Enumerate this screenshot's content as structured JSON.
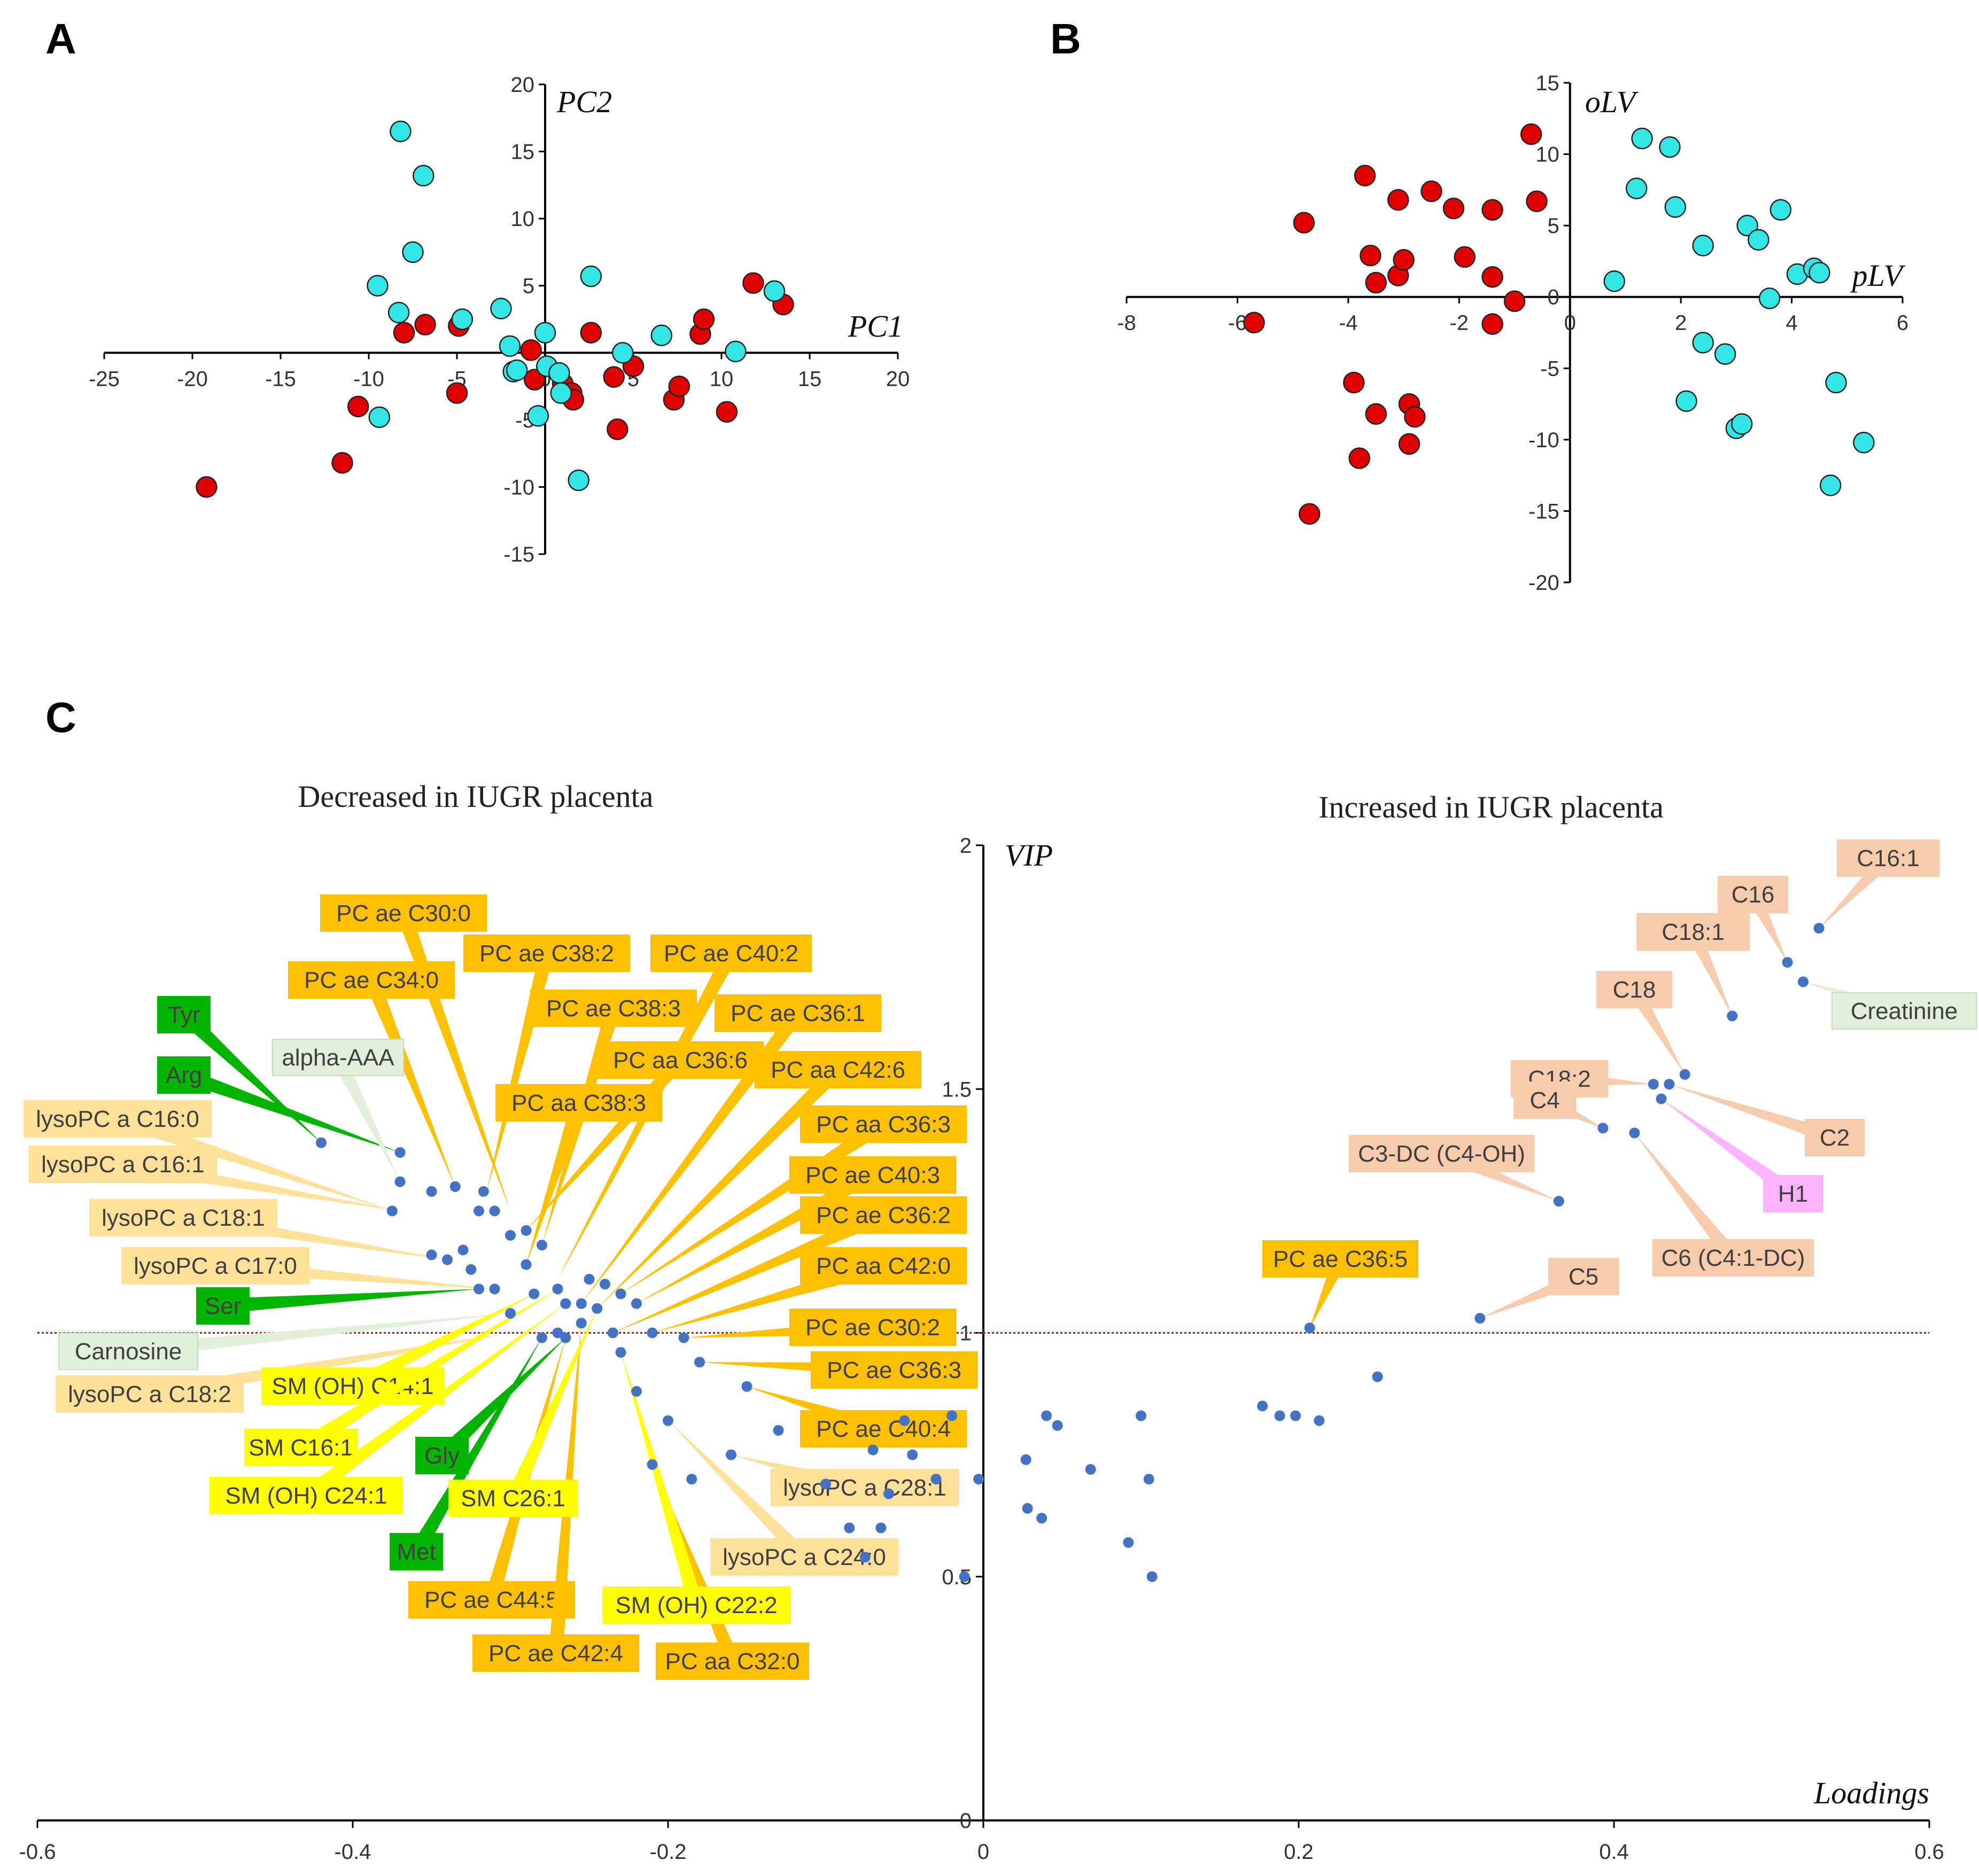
{
  "colors": {
    "red": "#e00000",
    "cyan": "#33e6e6",
    "blue_dot": "#4472c4",
    "threshold": "#e00000",
    "cat": {
      "orange": {
        "fill": "#ffc000",
        "edge": "#ffc000",
        "text": "#404040"
      },
      "lightorange": {
        "fill": "#ffe199",
        "edge": "#ffe199",
        "text": "#404040"
      },
      "yellow": {
        "fill": "#ffff00",
        "edge": "#ffff00",
        "text": "#404040"
      },
      "green": {
        "fill": "#00b400",
        "edge": "#00b400",
        "text": "#404040"
      },
      "palegreen": {
        "fill": "#e2efda",
        "edge": "#c8dcc0",
        "text": "#404040"
      },
      "salmon": {
        "fill": "#f8cbad",
        "edge": "#f8cbad",
        "text": "#404040"
      },
      "pink": {
        "fill": "#ffb3ff",
        "edge": "#ffb3ff",
        "text": "#404040"
      }
    }
  },
  "chart_data": [
    {
      "panel": "A",
      "type": "scatter",
      "xlabel": "PC1",
      "ylabel": "PC2",
      "xlim": [
        -25,
        20
      ],
      "ylim": [
        -15,
        20
      ],
      "xticks": [
        -25,
        -20,
        -15,
        -10,
        -5,
        0,
        5,
        10,
        15,
        20
      ],
      "yticks": [
        -15,
        -10,
        -5,
        0,
        5,
        10,
        15,
        20
      ],
      "series": [
        {
          "name": "red",
          "points": [
            [
              -19.2,
              -10.0
            ],
            [
              -11.5,
              -8.2
            ],
            [
              -10.6,
              -4.0
            ],
            [
              -8.0,
              1.5
            ],
            [
              -6.8,
              2.1
            ],
            [
              -5.0,
              -3.0
            ],
            [
              -4.9,
              2.0
            ],
            [
              -0.8,
              0.2
            ],
            [
              -0.6,
              -2.0
            ],
            [
              1.0,
              -2.3
            ],
            [
              1.5,
              -3.0
            ],
            [
              1.6,
              -3.5
            ],
            [
              2.6,
              1.5
            ],
            [
              3.9,
              -1.8
            ],
            [
              4.1,
              -5.7
            ],
            [
              5.0,
              -1.0
            ],
            [
              7.3,
              -3.5
            ],
            [
              7.6,
              -2.5
            ],
            [
              8.8,
              1.4
            ],
            [
              9.0,
              2.5
            ],
            [
              10.3,
              -4.4
            ],
            [
              11.8,
              5.2
            ],
            [
              13.5,
              3.6
            ]
          ]
        },
        {
          "name": "cyan",
          "points": [
            [
              -8.2,
              16.5
            ],
            [
              -6.9,
              13.2
            ],
            [
              -7.5,
              7.5
            ],
            [
              -9.5,
              5.0
            ],
            [
              -8.3,
              3.0
            ],
            [
              -4.7,
              2.5
            ],
            [
              -2.5,
              3.3
            ],
            [
              -2.0,
              0.5
            ],
            [
              0.0,
              1.5
            ],
            [
              -1.8,
              -1.4
            ],
            [
              -1.6,
              -1.3
            ],
            [
              -0.4,
              -4.7
            ],
            [
              0.1,
              -1.0
            ],
            [
              0.8,
              -1.5
            ],
            [
              0.9,
              -3.0
            ],
            [
              1.9,
              -9.5
            ],
            [
              2.6,
              5.7
            ],
            [
              4.4,
              0.0
            ],
            [
              6.6,
              1.3
            ],
            [
              10.8,
              0.1
            ],
            [
              13.0,
              4.6
            ],
            [
              -9.4,
              -4.8
            ]
          ]
        }
      ]
    },
    {
      "panel": "B",
      "type": "scatter",
      "xlabel": "pLV",
      "ylabel": "oLV",
      "xlim": [
        -8,
        6
      ],
      "ylim": [
        -20,
        15
      ],
      "xticks": [
        -8,
        -6,
        -4,
        -2,
        0,
        2,
        4,
        6
      ],
      "yticks": [
        -20,
        -15,
        -10,
        -5,
        0,
        5,
        10,
        15
      ],
      "series": [
        {
          "name": "red",
          "points": [
            [
              -5.7,
              -1.8
            ],
            [
              -4.8,
              5.2
            ],
            [
              -4.7,
              -15.2
            ],
            [
              -3.9,
              -6.0
            ],
            [
              -3.8,
              -11.3
            ],
            [
              -3.7,
              8.5
            ],
            [
              -3.6,
              2.9
            ],
            [
              -3.5,
              1.0
            ],
            [
              -3.5,
              -8.2
            ],
            [
              -3.1,
              6.8
            ],
            [
              -3.1,
              1.5
            ],
            [
              -3.0,
              2.6
            ],
            [
              -2.9,
              -7.5
            ],
            [
              -2.9,
              -10.3
            ],
            [
              -2.8,
              -8.4
            ],
            [
              -2.5,
              7.4
            ],
            [
              -2.1,
              6.2
            ],
            [
              -1.9,
              2.8
            ],
            [
              -1.4,
              6.1
            ],
            [
              -1.4,
              1.4
            ],
            [
              -1.4,
              -1.9
            ],
            [
              -1.0,
              -0.3
            ],
            [
              -0.7,
              11.4
            ],
            [
              -0.6,
              6.7
            ]
          ]
        },
        {
          "name": "cyan",
          "points": [
            [
              0.8,
              1.1
            ],
            [
              1.2,
              7.6
            ],
            [
              1.3,
              11.1
            ],
            [
              1.8,
              10.5
            ],
            [
              1.9,
              6.3
            ],
            [
              2.1,
              -7.3
            ],
            [
              2.4,
              3.6
            ],
            [
              2.4,
              -3.2
            ],
            [
              2.8,
              -4.0
            ],
            [
              3.0,
              -9.2
            ],
            [
              3.1,
              -8.9
            ],
            [
              3.2,
              5.0
            ],
            [
              3.4,
              4.0
            ],
            [
              3.6,
              -0.1
            ],
            [
              3.8,
              6.1
            ],
            [
              4.1,
              1.6
            ],
            [
              4.4,
              2.0
            ],
            [
              4.5,
              1.7
            ],
            [
              4.7,
              -13.2
            ],
            [
              4.8,
              -6.0
            ],
            [
              5.3,
              -10.2
            ]
          ]
        }
      ]
    },
    {
      "panel": "C",
      "type": "scatter",
      "title_left": "Decreased in IUGR placenta",
      "title_right": "Increased in IUGR placenta",
      "xlabel": "Loadings",
      "ylabel": "VIP",
      "xlim": [
        -0.6,
        0.6
      ],
      "ylim": [
        0,
        2
      ],
      "xticks": [
        -0.6,
        -0.4,
        -0.2,
        0,
        0.2,
        0.4,
        0.6
      ],
      "yticks": [
        0,
        0.5,
        1,
        1.5,
        2
      ],
      "threshold": 1.0,
      "points": [
        [
          0.53,
          1.83
        ],
        [
          0.51,
          1.76
        ],
        [
          0.52,
          1.72
        ],
        [
          0.475,
          1.65
        ],
        [
          0.445,
          1.53
        ],
        [
          0.425,
          1.51
        ],
        [
          0.435,
          1.51
        ],
        [
          0.43,
          1.48
        ],
        [
          0.393,
          1.42
        ],
        [
          0.413,
          1.41
        ],
        [
          0.365,
          1.27
        ],
        [
          0.315,
          1.03
        ],
        [
          0.207,
          1.01
        ],
        [
          0.25,
          0.91
        ],
        [
          0.177,
          0.85
        ],
        [
          0.188,
          0.83
        ],
        [
          0.198,
          0.83
        ],
        [
          0.213,
          0.82
        ],
        [
          0.1,
          0.83
        ],
        [
          0.04,
          0.83
        ],
        [
          0.047,
          0.81
        ],
        [
          0.068,
          0.72
        ],
        [
          0.105,
          0.7
        ],
        [
          0.027,
          0.74
        ],
        [
          0.028,
          0.64
        ],
        [
          0.037,
          0.62
        ],
        [
          0.092,
          0.57
        ],
        [
          0.107,
          0.5
        ],
        [
          -0.003,
          0.7
        ],
        [
          -0.012,
          0.5
        ],
        [
          -0.02,
          0.83
        ],
        [
          -0.03,
          0.7
        ],
        [
          -0.045,
          0.75
        ],
        [
          -0.05,
          0.82
        ],
        [
          -0.06,
          0.67
        ],
        [
          -0.065,
          0.6
        ],
        [
          -0.07,
          0.76
        ],
        [
          -0.075,
          0.54
        ],
        [
          -0.085,
          0.6
        ],
        [
          -0.1,
          0.69
        ],
        [
          -0.13,
          0.8
        ],
        [
          -0.15,
          0.89
        ],
        [
          -0.16,
          0.75
        ],
        [
          -0.185,
          0.7
        ],
        [
          -0.2,
          0.82
        ],
        [
          -0.21,
          0.73
        ],
        [
          -0.22,
          0.88
        ],
        [
          -0.23,
          0.96
        ],
        [
          -0.18,
          0.94
        ],
        [
          -0.19,
          0.99
        ],
        [
          -0.21,
          1.0
        ],
        [
          -0.235,
          1.0
        ],
        [
          -0.255,
          1.02
        ],
        [
          -0.265,
          0.99
        ],
        [
          -0.27,
          1.0
        ],
        [
          -0.28,
          0.99
        ],
        [
          -0.3,
          1.04
        ],
        [
          -0.31,
          1.09
        ],
        [
          -0.325,
          1.13
        ],
        [
          -0.33,
          1.17
        ],
        [
          -0.32,
          1.09
        ],
        [
          -0.34,
          1.15
        ],
        [
          -0.35,
          1.16
        ],
        [
          -0.29,
          1.14
        ],
        [
          -0.285,
          1.08
        ],
        [
          -0.27,
          1.09
        ],
        [
          -0.265,
          1.06
        ],
        [
          -0.255,
          1.06
        ],
        [
          -0.245,
          1.05
        ],
        [
          -0.24,
          1.1
        ],
        [
          -0.25,
          1.11
        ],
        [
          -0.23,
          1.08
        ],
        [
          -0.22,
          1.06
        ],
        [
          -0.28,
          1.18
        ],
        [
          -0.29,
          1.21
        ],
        [
          -0.3,
          1.2
        ],
        [
          -0.31,
          1.25
        ],
        [
          -0.317,
          1.29
        ],
        [
          -0.32,
          1.25
        ],
        [
          -0.335,
          1.3
        ],
        [
          -0.35,
          1.29
        ],
        [
          -0.37,
          1.37
        ],
        [
          -0.37,
          1.31
        ],
        [
          -0.375,
          1.25
        ],
        [
          -0.42,
          1.39
        ]
      ],
      "labels": [
        {
          "text": "C16:1",
          "cat": "salmon"
        },
        {
          "text": "C16",
          "cat": "salmon"
        },
        {
          "text": "C18:1",
          "cat": "salmon"
        },
        {
          "text": "Creatinine",
          "cat": "palegreen"
        },
        {
          "text": "C18",
          "cat": "salmon"
        },
        {
          "text": "C18:2",
          "cat": "salmon"
        },
        {
          "text": "C2",
          "cat": "salmon"
        },
        {
          "text": "C4",
          "cat": "salmon"
        },
        {
          "text": "H1",
          "cat": "pink"
        },
        {
          "text": "C3-DC (C4-OH)",
          "cat": "salmon"
        },
        {
          "text": "C6 (C4:1-DC)",
          "cat": "salmon"
        },
        {
          "text": "C5",
          "cat": "salmon"
        },
        {
          "text": "PC ae C36:5",
          "cat": "orange"
        },
        {
          "text": "PC ae C30:0",
          "cat": "orange"
        },
        {
          "text": "PC ae C38:2",
          "cat": "orange"
        },
        {
          "text": "PC ae C40:2",
          "cat": "orange"
        },
        {
          "text": "PC ae C34:0",
          "cat": "orange"
        },
        {
          "text": "PC ae C38:3",
          "cat": "orange"
        },
        {
          "text": "PC ae C36:1",
          "cat": "orange"
        },
        {
          "text": "PC aa C36:6",
          "cat": "orange"
        },
        {
          "text": "PC aa C42:6",
          "cat": "orange"
        },
        {
          "text": "PC aa C38:3",
          "cat": "orange"
        },
        {
          "text": "PC aa C36:3",
          "cat": "orange"
        },
        {
          "text": "PC ae C40:3",
          "cat": "orange"
        },
        {
          "text": "PC ae C36:2",
          "cat": "orange"
        },
        {
          "text": "PC aa C42:0",
          "cat": "orange"
        },
        {
          "text": "PC ae C30:2",
          "cat": "orange"
        },
        {
          "text": "PC ae C36:3",
          "cat": "orange"
        },
        {
          "text": "PC ae C40:4",
          "cat": "orange"
        },
        {
          "text": "PC ae C44:5",
          "cat": "orange"
        },
        {
          "text": "PC ae C42:4",
          "cat": "orange"
        },
        {
          "text": "PC aa C32:0",
          "cat": "orange"
        },
        {
          "text": "Tyr",
          "cat": "green"
        },
        {
          "text": "Arg",
          "cat": "green"
        },
        {
          "text": "Ser",
          "cat": "green"
        },
        {
          "text": "Gly",
          "cat": "green"
        },
        {
          "text": "Met",
          "cat": "green"
        },
        {
          "text": "alpha-AAA",
          "cat": "palegreen"
        },
        {
          "text": "Carnosine",
          "cat": "palegreen"
        },
        {
          "text": "lysoPC a C16:0",
          "cat": "lightorange"
        },
        {
          "text": "lysoPC a C16:1",
          "cat": "lightorange"
        },
        {
          "text": "lysoPC a C18:1",
          "cat": "lightorange"
        },
        {
          "text": "lysoPC a C17:0",
          "cat": "lightorange"
        },
        {
          "text": "lysoPC a C18:2",
          "cat": "lightorange"
        },
        {
          "text": "lysoPC a C28:1",
          "cat": "lightorange"
        },
        {
          "text": "lysoPC a C24:0",
          "cat": "lightorange"
        },
        {
          "text": "SM (OH) C14:1",
          "cat": "yellow"
        },
        {
          "text": "SM C16:1",
          "cat": "yellow"
        },
        {
          "text": "SM (OH) C24:1",
          "cat": "yellow"
        },
        {
          "text": "SM C26:1",
          "cat": "yellow"
        },
        {
          "text": "SM (OH) C22:2",
          "cat": "yellow"
        }
      ]
    }
  ]
}
